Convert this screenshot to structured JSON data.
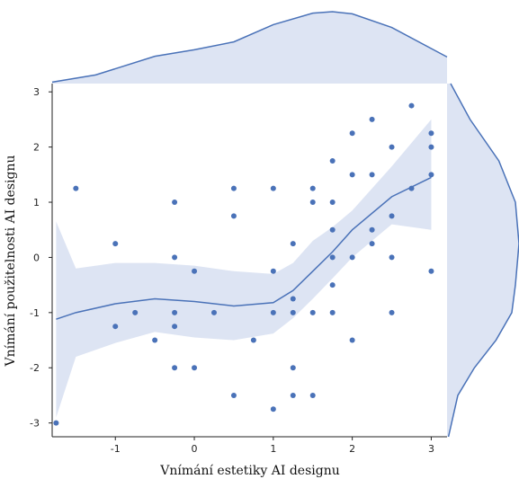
{
  "chart_data": {
    "type": "scatter",
    "xlabel": "Vnímání estetiky AI designu",
    "ylabel": "Vnímání použitelnosti AI designu",
    "xlim": [
      -1.8,
      3.2
    ],
    "ylim": [
      -3.25,
      3.15
    ],
    "x_ticks": [
      -1,
      0,
      1,
      2,
      3
    ],
    "y_ticks": [
      -3,
      -2,
      -1,
      0,
      1,
      2,
      3
    ],
    "grid": false,
    "colors": {
      "points": "#4a72b8",
      "line": "#4a72b8",
      "band": "#dde4f3"
    },
    "points": [
      [
        -1.75,
        -3
      ],
      [
        -1.5,
        1.25
      ],
      [
        -1,
        0.25
      ],
      [
        -1,
        -1.25
      ],
      [
        -0.75,
        -1
      ],
      [
        -0.5,
        -1.5
      ],
      [
        -0.25,
        1
      ],
      [
        -0.25,
        0
      ],
      [
        -0.25,
        -1
      ],
      [
        -0.25,
        -1.25
      ],
      [
        -0.25,
        -2
      ],
      [
        0,
        -0.25
      ],
      [
        0,
        -2
      ],
      [
        0.25,
        -1
      ],
      [
        0.5,
        1.25
      ],
      [
        0.5,
        0.75
      ],
      [
        0.5,
        -2.5
      ],
      [
        0.75,
        -1.5
      ],
      [
        1,
        1.25
      ],
      [
        1,
        -0.25
      ],
      [
        1,
        -1
      ],
      [
        1,
        -2.75
      ],
      [
        1.25,
        0.25
      ],
      [
        1.25,
        -0.75
      ],
      [
        1.25,
        -1
      ],
      [
        1.25,
        -2
      ],
      [
        1.25,
        -2.5
      ],
      [
        1.5,
        1.25
      ],
      [
        1.5,
        1
      ],
      [
        1.5,
        -1
      ],
      [
        1.5,
        -2.5
      ],
      [
        1.75,
        1.75
      ],
      [
        1.75,
        1
      ],
      [
        1.75,
        0.5
      ],
      [
        1.75,
        0
      ],
      [
        1.75,
        -0.5
      ],
      [
        1.75,
        -1
      ],
      [
        2,
        2.25
      ],
      [
        2,
        1.5
      ],
      [
        2,
        0
      ],
      [
        2,
        -1.5
      ],
      [
        2.25,
        2.5
      ],
      [
        2.25,
        1.5
      ],
      [
        2.25,
        0.5
      ],
      [
        2.25,
        0.25
      ],
      [
        2.5,
        2
      ],
      [
        2.5,
        0.75
      ],
      [
        2.5,
        0
      ],
      [
        2.5,
        -1
      ],
      [
        2.75,
        2.75
      ],
      [
        2.75,
        1.25
      ],
      [
        3,
        2.25
      ],
      [
        3,
        2
      ],
      [
        3,
        1.5
      ],
      [
        3,
        -0.25
      ]
    ],
    "smooth_fit": {
      "x": [
        -1.75,
        -1.5,
        -1,
        -0.5,
        0,
        0.5,
        1,
        1.25,
        1.5,
        1.75,
        2,
        2.5,
        3
      ],
      "y": [
        -1.12,
        -1.0,
        -0.84,
        -0.75,
        -0.8,
        -0.88,
        -0.82,
        -0.6,
        -0.25,
        0.1,
        0.5,
        1.1,
        1.45
      ],
      "lower": [
        -2.9,
        -1.8,
        -1.55,
        -1.35,
        -1.45,
        -1.5,
        -1.38,
        -1.1,
        -0.75,
        -0.38,
        0.0,
        0.6,
        0.5
      ],
      "upper": [
        0.65,
        -0.2,
        -0.1,
        -0.1,
        -0.15,
        -0.25,
        -0.3,
        -0.1,
        0.3,
        0.55,
        0.85,
        1.65,
        2.5
      ]
    },
    "top_density": {
      "x": [
        -1.8,
        -1.25,
        -0.5,
        0,
        0.5,
        1,
        1.5,
        1.75,
        2,
        2.5,
        3.2
      ],
      "density": [
        0.02,
        0.12,
        0.38,
        0.47,
        0.58,
        0.82,
        0.98,
        1.0,
        0.97,
        0.78,
        0.37
      ]
    },
    "right_density": {
      "y": [
        3.15,
        2.5,
        1.75,
        1.0,
        0.25,
        -0.5,
        -1.0,
        -1.5,
        -2.0,
        -2.5,
        -3.25
      ],
      "density": [
        0.05,
        0.32,
        0.72,
        0.95,
        1.0,
        0.95,
        0.9,
        0.68,
        0.38,
        0.15,
        0.02
      ]
    }
  }
}
